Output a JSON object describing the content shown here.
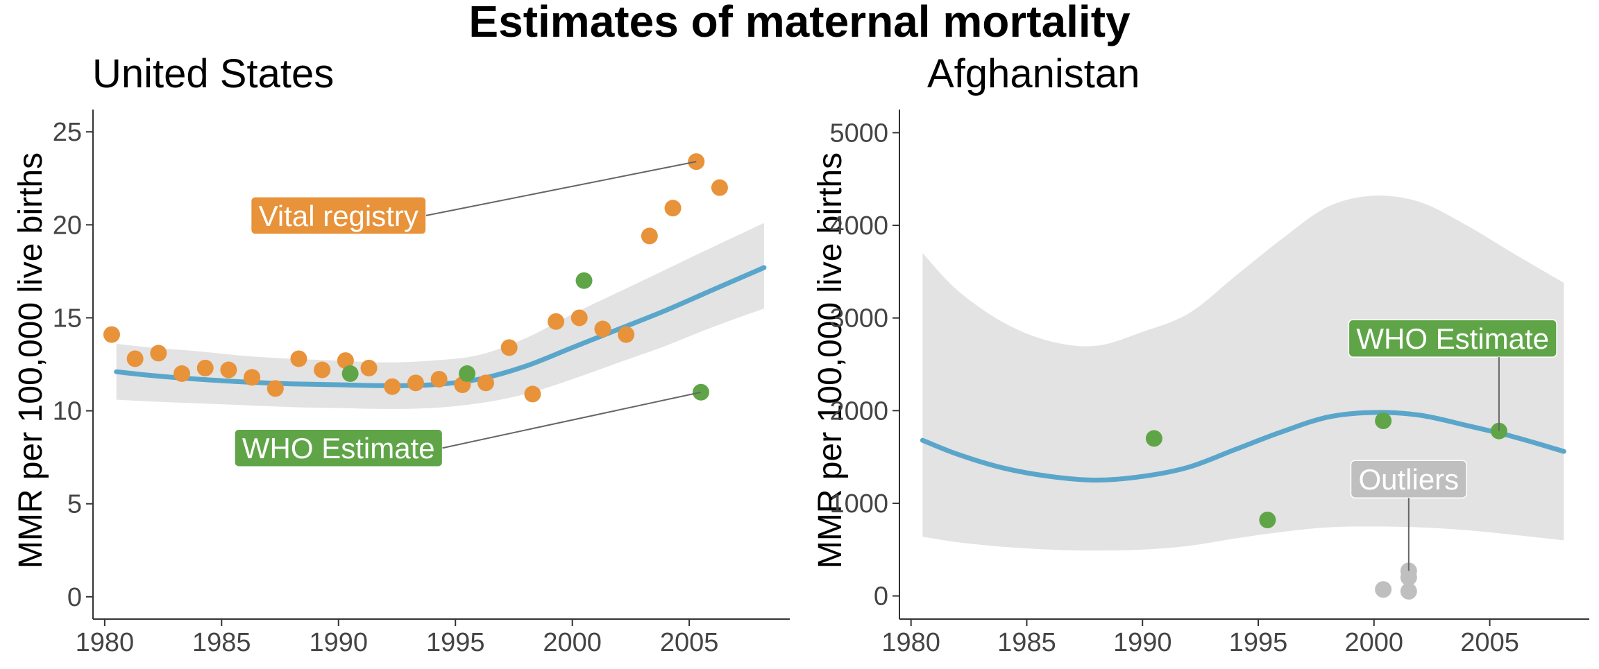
{
  "title": "Estimates of maternal mortality",
  "colors": {
    "vital_registry": "#e8923a",
    "who_estimate": "#5fa548",
    "outliers": "#bfbfbf",
    "fit_line": "#5aa6cb",
    "band": "#e3e3e3",
    "axis": "#333333"
  },
  "chart_data": [
    {
      "type": "scatter",
      "title": "United States",
      "xlabel": "",
      "ylabel": "MMR per 100,000 live births",
      "xlim": [
        1979.5,
        2009.3
      ],
      "ylim": [
        -1.2,
        26.2
      ],
      "xticks": [
        1980,
        1985,
        1990,
        1995,
        2000,
        2005
      ],
      "yticks": [
        0,
        5,
        10,
        15,
        20,
        25
      ],
      "grid": false,
      "legend": "none",
      "series": [
        {
          "name": "Vital registry",
          "color": "#e8923a",
          "points": [
            [
              1980.3,
              14.1
            ],
            [
              1981.3,
              12.8
            ],
            [
              1982.3,
              13.1
            ],
            [
              1983.3,
              12.0
            ],
            [
              1984.3,
              12.3
            ],
            [
              1985.3,
              12.2
            ],
            [
              1986.3,
              11.8
            ],
            [
              1987.3,
              11.2
            ],
            [
              1988.3,
              12.8
            ],
            [
              1989.3,
              12.2
            ],
            [
              1990.3,
              12.7
            ],
            [
              1991.3,
              12.3
            ],
            [
              1992.3,
              11.3
            ],
            [
              1993.3,
              11.5
            ],
            [
              1994.3,
              11.7
            ],
            [
              1995.3,
              11.4
            ],
            [
              1996.3,
              11.5
            ],
            [
              1997.3,
              13.4
            ],
            [
              1998.3,
              10.9
            ],
            [
              1999.3,
              14.8
            ],
            [
              2000.3,
              15.0
            ],
            [
              2001.3,
              14.4
            ],
            [
              2002.3,
              14.1
            ],
            [
              2003.3,
              19.4
            ],
            [
              2004.3,
              20.9
            ],
            [
              2005.3,
              23.4
            ],
            [
              2006.3,
              22.0
            ]
          ]
        },
        {
          "name": "WHO Estimate",
          "color": "#5fa548",
          "points": [
            [
              1990.5,
              12.0
            ],
            [
              1995.5,
              12.0
            ],
            [
              2000.5,
              17.0
            ],
            [
              2005.5,
              11.0
            ]
          ]
        }
      ],
      "fit": {
        "x": [
          1980.5,
          1982,
          1984,
          1986,
          1988,
          1990,
          1992,
          1994,
          1996,
          1998,
          2000,
          2002,
          2004,
          2006,
          2008.2
        ],
        "y": [
          12.1,
          11.9,
          11.7,
          11.55,
          11.45,
          11.4,
          11.35,
          11.4,
          11.7,
          12.4,
          13.4,
          14.4,
          15.4,
          16.5,
          17.7
        ],
        "lower": [
          10.6,
          10.5,
          10.4,
          10.3,
          10.2,
          10.15,
          10.1,
          10.15,
          10.4,
          10.9,
          11.7,
          12.6,
          13.5,
          14.5,
          15.5
        ],
        "upper": [
          13.6,
          13.4,
          13.2,
          12.95,
          12.8,
          12.7,
          12.6,
          12.7,
          13.0,
          13.9,
          15.2,
          16.4,
          17.6,
          18.8,
          20.1
        ]
      },
      "annotations": [
        {
          "text": "Vital registry",
          "color": "#e8923a",
          "x": 1990,
          "y": 20.5,
          "anchor_point": [
            2005.3,
            23.4
          ]
        },
        {
          "text": "WHO Estimate",
          "color": "#5fa548",
          "x": 1990,
          "y": 8.0,
          "anchor_point": [
            2005.5,
            11.0
          ]
        }
      ]
    },
    {
      "type": "scatter",
      "title": "Afghanistan",
      "xlabel": "",
      "ylabel": "MMR per 100,000 live births",
      "xlim": [
        1979.5,
        2009.3
      ],
      "ylim": [
        -250,
        5250
      ],
      "xticks": [
        1980,
        1985,
        1990,
        1995,
        2000,
        2005
      ],
      "yticks": [
        0,
        1000,
        2000,
        3000,
        4000,
        5000
      ],
      "grid": false,
      "legend": "none",
      "series": [
        {
          "name": "WHO Estimate",
          "color": "#5fa548",
          "points": [
            [
              1990.5,
              1700
            ],
            [
              1995.4,
              820
            ],
            [
              2000.4,
              1890
            ],
            [
              2005.4,
              1780
            ]
          ]
        },
        {
          "name": "Outliers",
          "color": "#bfbfbf",
          "points": [
            [
              2000.4,
              70
            ],
            [
              2001.5,
              270
            ],
            [
              2001.5,
              200
            ],
            [
              2001.5,
              50
            ]
          ]
        }
      ],
      "fit": {
        "x": [
          1980.5,
          1982,
          1984,
          1986,
          1988,
          1990,
          1992,
          1994,
          1996,
          1998,
          2000,
          2002,
          2004,
          2006,
          2008.2
        ],
        "y": [
          1680,
          1530,
          1380,
          1290,
          1250,
          1290,
          1390,
          1580,
          1770,
          1930,
          1980,
          1950,
          1840,
          1720,
          1560
        ],
        "lower": [
          640,
          580,
          530,
          500,
          490,
          500,
          540,
          620,
          690,
          740,
          750,
          740,
          710,
          660,
          600
        ],
        "upper": [
          3700,
          3300,
          2950,
          2750,
          2700,
          2850,
          3050,
          3450,
          3850,
          4200,
          4320,
          4250,
          4000,
          3700,
          3380
        ]
      },
      "annotations": [
        {
          "text": "WHO Estimate",
          "color": "#5fa548",
          "x": 2003.4,
          "y": 2780,
          "anchor_point": [
            2005.4,
            1780
          ]
        },
        {
          "text": "Outliers",
          "color": "#bfbfbf",
          "x": 2001.5,
          "y": 1260,
          "anchor_point": [
            2001.5,
            270
          ]
        }
      ]
    }
  ]
}
